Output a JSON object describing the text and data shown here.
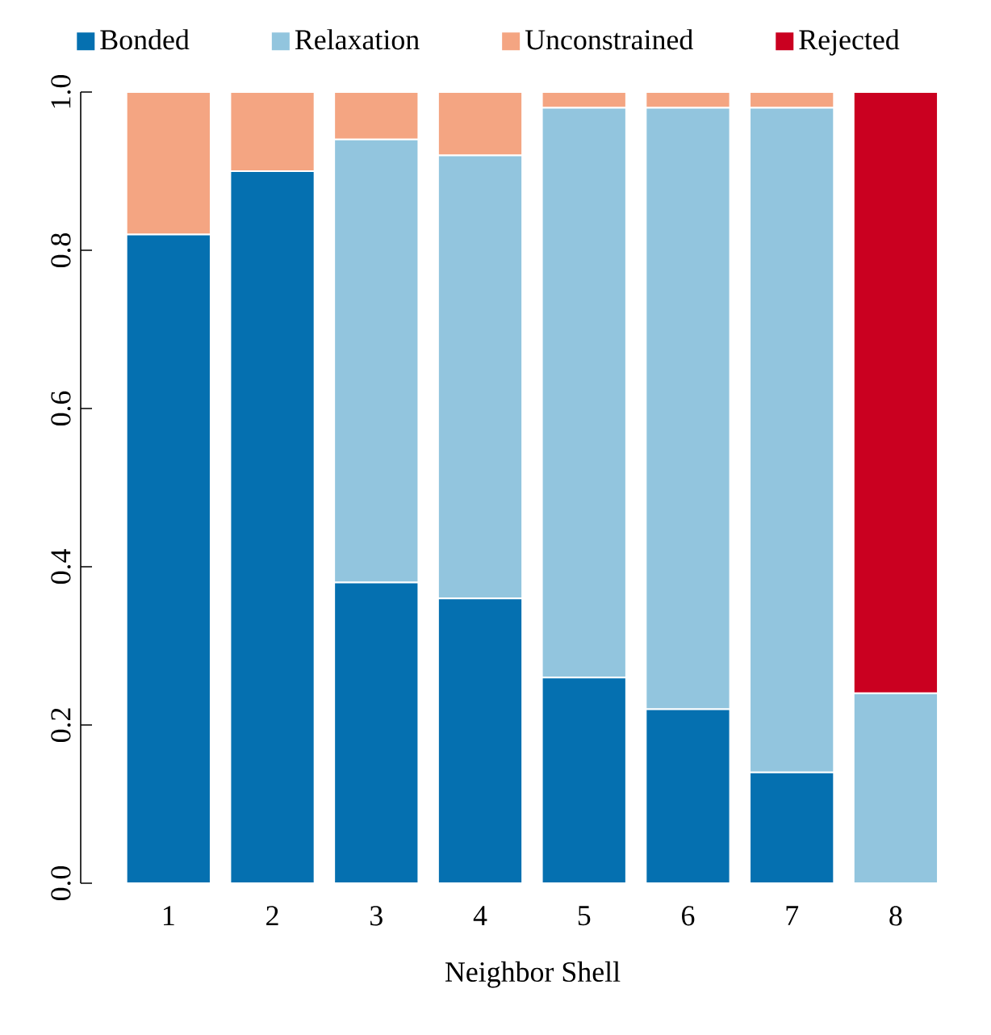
{
  "chart_data": {
    "type": "bar",
    "stacked": true,
    "xlabel": "Neighbor Shell",
    "categories": [
      "1",
      "2",
      "3",
      "4",
      "5",
      "6",
      "7",
      "8"
    ],
    "series": [
      {
        "name": "Bonded",
        "color": "#0570b0",
        "values": [
          0.82,
          0.9,
          0.38,
          0.36,
          0.26,
          0.22,
          0.14,
          0
        ]
      },
      {
        "name": "Relaxation",
        "color": "#92c5de",
        "values": [
          0,
          0,
          0.56,
          0.56,
          0.72,
          0.76,
          0.84,
          0.24
        ]
      },
      {
        "name": "Unconstrained",
        "color": "#f4a582",
        "values": [
          0.18,
          0.1,
          0.06,
          0.08,
          0.02,
          0.02,
          0.02,
          0
        ]
      },
      {
        "name": "Rejected",
        "color": "#ca0020",
        "values": [
          0,
          0,
          0,
          0,
          0,
          0,
          0,
          0.76
        ]
      }
    ],
    "ylim": [
      0,
      1
    ],
    "yticks": [
      {
        "value": 0,
        "label": "0.0"
      },
      0.2,
      0.4,
      0.6,
      0.8,
      {
        "value": 1,
        "label": "1.0"
      }
    ],
    "legend": "top",
    "grid": false
  }
}
